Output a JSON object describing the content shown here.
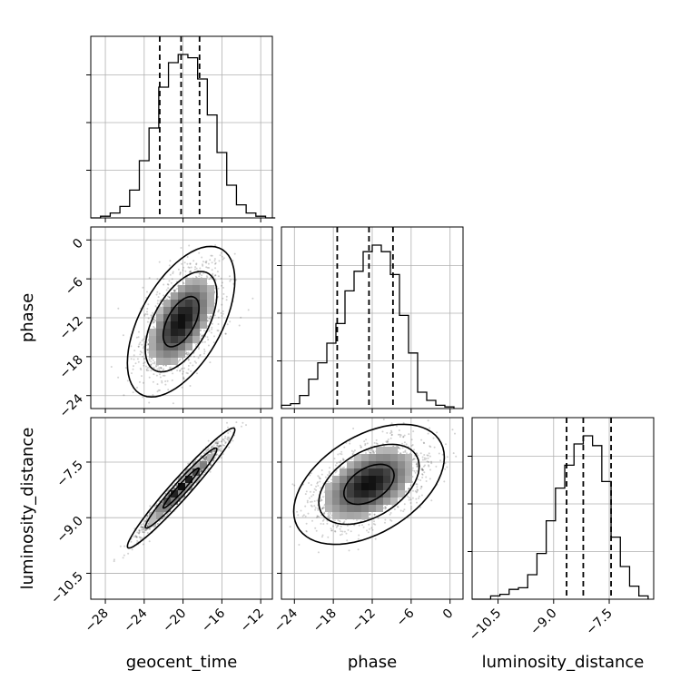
{
  "chart_data": {
    "type": "corner",
    "parameters": [
      "geocent_time",
      "phase",
      "luminosity_distance"
    ],
    "axes": {
      "geocent_time": {
        "label": "geocent_time",
        "range": [
          -29.5,
          -10.8
        ],
        "ticks": [
          -28,
          -24,
          -20,
          -16,
          -12
        ],
        "tick_labels": [
          "−28",
          "−24",
          "−20",
          "−16",
          "−12"
        ]
      },
      "phase": {
        "label": "phase",
        "range": [
          -26.0,
          2.0
        ],
        "ticks": [
          -24,
          -18,
          -12,
          -6,
          0
        ],
        "tick_labels": [
          "−24",
          "−18",
          "−12",
          "−6",
          "0"
        ]
      },
      "luminosity_distance": {
        "label": "luminosity_distance",
        "range": [
          -11.2,
          -6.3
        ],
        "ticks": [
          -10.5,
          -9.0,
          -7.5
        ],
        "tick_labels": [
          "−10.5",
          "−9.0",
          "−7.5"
        ]
      }
    },
    "marginals": [
      {
        "parameter": "geocent_time",
        "bin_edges": [
          -29.5,
          -28.5,
          -27.5,
          -26.5,
          -25.5,
          -24.5,
          -23.5,
          -22.5,
          -21.5,
          -20.5,
          -19.5,
          -18.5,
          -17.5,
          -16.5,
          -15.5,
          -14.5,
          -13.5,
          -12.5,
          -11.5,
          -10.5
        ],
        "counts": [
          0.0,
          0.01,
          0.03,
          0.07,
          0.17,
          0.35,
          0.55,
          0.8,
          0.95,
          1.0,
          0.98,
          0.85,
          0.63,
          0.4,
          0.2,
          0.08,
          0.03,
          0.01,
          0.0
        ],
        "quantiles": [
          -22.4,
          -20.2,
          -18.3
        ]
      },
      {
        "parameter": "phase",
        "bin_edges": [
          -26.0,
          -24.6,
          -23.2,
          -21.8,
          -20.4,
          -19.0,
          -17.6,
          -16.2,
          -14.8,
          -13.4,
          -12.0,
          -10.6,
          -9.2,
          -7.8,
          -6.4,
          -5.0,
          -3.6,
          -2.2,
          -0.8,
          0.6
        ],
        "counts": [
          0.02,
          0.03,
          0.08,
          0.18,
          0.28,
          0.4,
          0.52,
          0.72,
          0.84,
          0.96,
          1.0,
          0.96,
          0.82,
          0.57,
          0.34,
          0.1,
          0.05,
          0.02,
          0.01
        ],
        "quantiles": [
          -17.4,
          -12.5,
          -8.8
        ]
      },
      {
        "parameter": "luminosity_distance",
        "bin_edges": [
          -11.2,
          -10.95,
          -10.7,
          -10.45,
          -10.2,
          -9.95,
          -9.7,
          -9.45,
          -9.2,
          -8.95,
          -8.7,
          -8.45,
          -8.2,
          -7.95,
          -7.7,
          -7.45,
          -7.2,
          -6.95,
          -6.7,
          -6.45
        ],
        "counts": [
          0.0,
          0.0,
          0.02,
          0.03,
          0.06,
          0.07,
          0.15,
          0.28,
          0.48,
          0.68,
          0.82,
          0.95,
          1.0,
          0.94,
          0.72,
          0.38,
          0.2,
          0.08,
          0.02
        ],
        "quantiles": [
          -8.65,
          -8.2,
          -7.45
        ]
      }
    ],
    "joint": [
      {
        "x": "geocent_time",
        "y": "phase",
        "center": [
          -20.2,
          -12.6
        ],
        "correlation": 0.55
      },
      {
        "x": "geocent_time",
        "y": "luminosity_distance",
        "center": [
          -20.2,
          -8.2
        ],
        "correlation": 0.97
      },
      {
        "x": "phase",
        "y": "luminosity_distance",
        "center": [
          -12.5,
          -8.1
        ],
        "correlation": 0.45
      }
    ],
    "density_levels": [
      "39%",
      "86%",
      "99%"
    ],
    "quantile_style": "dashed",
    "grid": true
  }
}
